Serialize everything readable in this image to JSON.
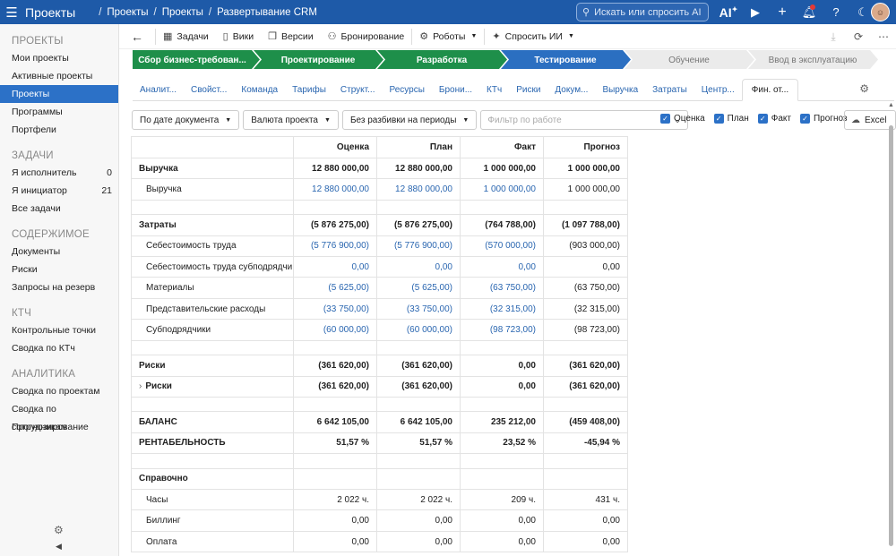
{
  "topbar": {
    "app_title": "Проекты",
    "breadcrumbs": [
      "Проекты",
      "Проекты",
      "Развертывание CRM"
    ],
    "search_placeholder": "Искать или спросить AI",
    "ai_label": "AI"
  },
  "sidebar": {
    "sections": [
      {
        "title": "ПРОЕКТЫ",
        "items": [
          {
            "label": "Мои проекты",
            "count": ""
          },
          {
            "label": "Активные проекты",
            "count": ""
          },
          {
            "label": "Проекты",
            "count": "",
            "active": true
          },
          {
            "label": "Программы",
            "count": ""
          },
          {
            "label": "Портфели",
            "count": ""
          }
        ]
      },
      {
        "title": "ЗАДАЧИ",
        "items": [
          {
            "label": "Я исполнитель",
            "count": "0"
          },
          {
            "label": "Я инициатор",
            "count": "21"
          },
          {
            "label": "Все задачи",
            "count": ""
          }
        ]
      },
      {
        "title": "СОДЕРЖИМОЕ",
        "items": [
          {
            "label": "Документы",
            "count": ""
          },
          {
            "label": "Риски",
            "count": ""
          },
          {
            "label": "Запросы на резерв",
            "count": ""
          }
        ]
      },
      {
        "title": "КТЧ",
        "items": [
          {
            "label": "Контрольные точки",
            "count": ""
          },
          {
            "label": "Сводка по КТч",
            "count": ""
          }
        ]
      },
      {
        "title": "АНАЛИТИКА",
        "items": [
          {
            "label": "Сводка по проектам",
            "count": ""
          },
          {
            "label": "Сводка по сотрудникам",
            "count": ""
          },
          {
            "label": "Прогнозирование",
            "count": ""
          }
        ]
      }
    ]
  },
  "toolbar": {
    "tasks": "Задачи",
    "wiki": "Вики",
    "versions": "Версии",
    "booking": "Бронирование",
    "robots": "Роботы",
    "ask_ai": "Спросить ИИ"
  },
  "stages": [
    {
      "label": "Сбор бизнес-требован...",
      "state": "done"
    },
    {
      "label": "Проектирование",
      "state": "done"
    },
    {
      "label": "Разработка",
      "state": "done"
    },
    {
      "label": "Тестирование",
      "state": "current"
    },
    {
      "label": "Обучение",
      "state": "future"
    },
    {
      "label": "Ввод в эксплуатацию",
      "state": "future"
    }
  ],
  "tabs": [
    "Аналит...",
    "Свойст...",
    "Команда",
    "Тарифы",
    "Структ...",
    "Ресурсы",
    "Брони...",
    "КТч",
    "Риски",
    "Докум...",
    "Выручка",
    "Затраты",
    "Центр...",
    "Фин. от..."
  ],
  "active_tab": "Фин. от...",
  "filters": {
    "by_date": "По дате документа",
    "currency": "Валюта проекта",
    "periods": "Без разбивки на периоды",
    "work_filter_placeholder": "Фильтр по работе"
  },
  "checkboxes": [
    {
      "label": "Оценка",
      "checked": true
    },
    {
      "label": "План",
      "checked": true
    },
    {
      "label": "Факт",
      "checked": true
    },
    {
      "label": "Прогноз",
      "checked": true
    }
  ],
  "excel_label": "Excel",
  "table": {
    "headers": [
      "",
      "Оценка",
      "План",
      "Факт",
      "Прогноз"
    ],
    "rows": [
      {
        "type": "bold",
        "label": "Выручка",
        "values": [
          "12 880 000,00",
          "12 880 000,00",
          "1 000 000,00",
          "1 000 000,00"
        ]
      },
      {
        "type": "sub",
        "label": "Выручка",
        "values": [
          "12 880 000,00",
          "12 880 000,00",
          "1 000 000,00",
          "1 000 000,00"
        ],
        "links": [
          true,
          true,
          true,
          false
        ]
      },
      {
        "type": "spacer"
      },
      {
        "type": "bold",
        "label": "Затраты",
        "values": [
          "(5 876 275,00)",
          "(5 876 275,00)",
          "(764 788,00)",
          "(1 097 788,00)"
        ]
      },
      {
        "type": "sub",
        "label": "Себестоимость труда",
        "values": [
          "(5 776 900,00)",
          "(5 776 900,00)",
          "(570 000,00)",
          "(903 000,00)"
        ],
        "links": [
          true,
          true,
          true,
          false
        ]
      },
      {
        "type": "sub",
        "label": "Себестоимость труда субподрядчи...",
        "values": [
          "0,00",
          "0,00",
          "0,00",
          "0,00"
        ],
        "links": [
          true,
          true,
          true,
          false
        ]
      },
      {
        "type": "sub",
        "label": "Материалы",
        "values": [
          "(5 625,00)",
          "(5 625,00)",
          "(63 750,00)",
          "(63 750,00)"
        ],
        "links": [
          true,
          true,
          true,
          false
        ]
      },
      {
        "type": "sub",
        "label": "Представительские расходы",
        "values": [
          "(33 750,00)",
          "(33 750,00)",
          "(32 315,00)",
          "(32 315,00)"
        ],
        "links": [
          true,
          true,
          true,
          false
        ]
      },
      {
        "type": "sub",
        "label": "Субподрядчики",
        "values": [
          "(60 000,00)",
          "(60 000,00)",
          "(98 723,00)",
          "(98 723,00)"
        ],
        "links": [
          true,
          true,
          true,
          false
        ]
      },
      {
        "type": "spacer"
      },
      {
        "type": "bold",
        "label": "Риски",
        "values": [
          "(361 620,00)",
          "(361 620,00)",
          "0,00",
          "(361 620,00)"
        ]
      },
      {
        "type": "bold-exp",
        "label": "Риски",
        "values": [
          "(361 620,00)",
          "(361 620,00)",
          "0,00",
          "(361 620,00)"
        ]
      },
      {
        "type": "spacer"
      },
      {
        "type": "bold",
        "label": "БАЛАНС",
        "values": [
          "6 642 105,00",
          "6 642 105,00",
          "235 212,00",
          "(459 408,00)"
        ]
      },
      {
        "type": "bold",
        "label": "РЕНТАБЕЛЬНОСТЬ",
        "values": [
          "51,57 %",
          "51,57 %",
          "23,52 %",
          "-45,94 %"
        ]
      },
      {
        "type": "spacer"
      },
      {
        "type": "bold",
        "label": "Справочно",
        "values": [
          "",
          "",
          "",
          ""
        ]
      },
      {
        "type": "sub",
        "label": "Часы",
        "values": [
          "2 022 ч.",
          "2 022 ч.",
          "209 ч.",
          "431 ч."
        ],
        "links": [
          false,
          false,
          false,
          false
        ]
      },
      {
        "type": "sub",
        "label": "Биллинг",
        "values": [
          "0,00",
          "0,00",
          "0,00",
          "0,00"
        ],
        "links": [
          false,
          false,
          false,
          false
        ]
      },
      {
        "type": "sub",
        "label": "Оплата",
        "values": [
          "0,00",
          "0,00",
          "0,00",
          "0,00"
        ],
        "links": [
          false,
          false,
          false,
          false
        ]
      }
    ]
  }
}
